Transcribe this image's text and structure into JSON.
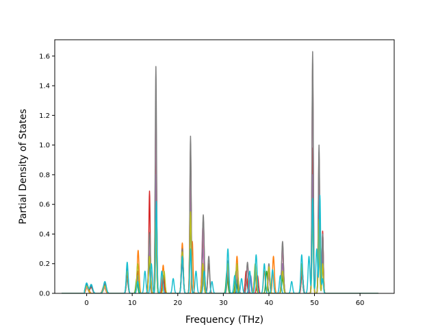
{
  "chart_data": {
    "type": "line",
    "title": "",
    "xlabel": "Frequency (THz)",
    "ylabel": "Partial Density of States",
    "xlim": [
      -7,
      67.5
    ],
    "ylim": [
      0,
      1.71
    ],
    "xticks": [
      0,
      10,
      20,
      30,
      40,
      50,
      60
    ],
    "yticks": [
      0.0,
      0.2,
      0.4,
      0.6,
      0.8,
      1.0,
      1.2,
      1.4,
      1.6
    ],
    "xtick_labels": [
      "0",
      "10",
      "20",
      "30",
      "40",
      "50",
      "60"
    ],
    "ytick_labels": [
      "0.0",
      "0.2",
      "0.4",
      "0.6",
      "0.8",
      "1.0",
      "1.2",
      "1.4",
      "1.6"
    ],
    "grid": false,
    "legend": false,
    "x_range": [
      -5.5,
      64.0
    ],
    "series": [
      {
        "color": "#1f77b4",
        "peaks": [
          [
            0.0,
            0.06,
            0.3
          ],
          [
            1.0,
            0.05,
            0.3
          ],
          [
            4.0,
            0.06,
            0.3
          ],
          [
            8.9,
            0.18,
            0.2
          ],
          [
            11.2,
            0.1,
            0.2
          ],
          [
            13.7,
            0.22,
            0.2
          ],
          [
            15.2,
            0.45,
            0.15
          ],
          [
            21.0,
            0.2,
            0.2
          ],
          [
            22.8,
            0.5,
            0.15
          ],
          [
            25.5,
            0.18,
            0.2
          ],
          [
            31.0,
            0.16,
            0.2
          ],
          [
            33.2,
            0.1,
            0.2
          ],
          [
            37.0,
            0.18,
            0.2
          ],
          [
            40.0,
            0.12,
            0.2
          ],
          [
            43.0,
            0.12,
            0.2
          ],
          [
            47.3,
            0.15,
            0.2
          ],
          [
            49.6,
            0.55,
            0.15
          ],
          [
            51.0,
            0.45,
            0.15
          ],
          [
            51.8,
            0.2,
            0.15
          ]
        ]
      },
      {
        "color": "#ff7f0e",
        "peaks": [
          [
            0.2,
            0.05,
            0.3
          ],
          [
            3.8,
            0.05,
            0.3
          ],
          [
            8.9,
            0.15,
            0.2
          ],
          [
            11.3,
            0.29,
            0.2
          ],
          [
            13.8,
            0.3,
            0.2
          ],
          [
            15.3,
            0.6,
            0.15
          ],
          [
            16.8,
            0.19,
            0.2
          ],
          [
            21.0,
            0.34,
            0.2
          ],
          [
            23.2,
            0.35,
            0.15
          ],
          [
            25.7,
            0.22,
            0.2
          ],
          [
            31.0,
            0.1,
            0.2
          ],
          [
            33.0,
            0.25,
            0.2
          ],
          [
            35.2,
            0.1,
            0.2
          ],
          [
            39.0,
            0.15,
            0.2
          ],
          [
            41.0,
            0.25,
            0.2
          ],
          [
            43.0,
            0.2,
            0.2
          ],
          [
            47.2,
            0.18,
            0.2
          ],
          [
            49.6,
            0.9,
            0.15
          ],
          [
            51.0,
            0.8,
            0.15
          ],
          [
            51.8,
            0.35,
            0.15
          ]
        ]
      },
      {
        "color": "#2ca02c",
        "peaks": [
          [
            0.0,
            0.04,
            0.3
          ],
          [
            4.0,
            0.04,
            0.3
          ],
          [
            8.9,
            0.12,
            0.2
          ],
          [
            11.0,
            0.1,
            0.2
          ],
          [
            13.8,
            0.25,
            0.2
          ],
          [
            15.2,
            0.55,
            0.15
          ],
          [
            17.0,
            0.12,
            0.2
          ],
          [
            21.0,
            0.25,
            0.2
          ],
          [
            22.8,
            0.6,
            0.15
          ],
          [
            25.5,
            0.2,
            0.2
          ],
          [
            30.8,
            0.15,
            0.2
          ],
          [
            32.8,
            0.15,
            0.2
          ],
          [
            37.0,
            0.12,
            0.2
          ],
          [
            39.5,
            0.15,
            0.2
          ],
          [
            43.0,
            0.1,
            0.2
          ],
          [
            47.2,
            0.15,
            0.2
          ],
          [
            49.6,
            0.7,
            0.15
          ],
          [
            51.0,
            0.6,
            0.15
          ],
          [
            51.8,
            0.25,
            0.15
          ]
        ]
      },
      {
        "color": "#d62728",
        "peaks": [
          [
            0.0,
            0.05,
            0.3
          ],
          [
            1.0,
            0.04,
            0.3
          ],
          [
            4.0,
            0.05,
            0.3
          ],
          [
            8.9,
            0.12,
            0.2
          ],
          [
            11.2,
            0.15,
            0.2
          ],
          [
            13.8,
            0.69,
            0.15
          ],
          [
            15.2,
            1.1,
            0.15
          ],
          [
            16.8,
            0.12,
            0.2
          ],
          [
            21.0,
            0.3,
            0.2
          ],
          [
            22.8,
            0.9,
            0.15
          ],
          [
            25.5,
            0.4,
            0.2
          ],
          [
            31.0,
            0.2,
            0.2
          ],
          [
            33.0,
            0.2,
            0.2
          ],
          [
            35.0,
            0.15,
            0.2
          ],
          [
            37.5,
            0.12,
            0.2
          ],
          [
            40.0,
            0.15,
            0.2
          ],
          [
            43.0,
            0.3,
            0.2
          ],
          [
            47.3,
            0.15,
            0.2
          ],
          [
            49.6,
            0.98,
            0.15
          ],
          [
            51.0,
            0.8,
            0.15
          ],
          [
            51.8,
            0.42,
            0.15
          ]
        ]
      },
      {
        "color": "#9467bd",
        "peaks": [
          [
            0.0,
            0.04,
            0.3
          ],
          [
            4.0,
            0.05,
            0.3
          ],
          [
            8.9,
            0.1,
            0.2
          ],
          [
            11.2,
            0.08,
            0.2
          ],
          [
            13.8,
            0.3,
            0.2
          ],
          [
            15.2,
            0.8,
            0.15
          ],
          [
            21.0,
            0.25,
            0.2
          ],
          [
            22.8,
            0.7,
            0.15
          ],
          [
            25.5,
            0.3,
            0.2
          ],
          [
            31.0,
            0.15,
            0.2
          ],
          [
            33.0,
            0.12,
            0.2
          ],
          [
            36.0,
            0.12,
            0.2
          ],
          [
            40.0,
            0.12,
            0.2
          ],
          [
            43.0,
            0.2,
            0.2
          ],
          [
            47.2,
            0.15,
            0.2
          ],
          [
            49.6,
            0.8,
            0.15
          ],
          [
            51.0,
            0.7,
            0.15
          ],
          [
            51.8,
            0.3,
            0.15
          ]
        ]
      },
      {
        "color": "#8c564b",
        "peaks": [
          [
            0.0,
            0.05,
            0.3
          ],
          [
            1.0,
            0.04,
            0.3
          ],
          [
            4.0,
            0.06,
            0.3
          ],
          [
            8.9,
            0.1,
            0.2
          ],
          [
            11.2,
            0.1,
            0.2
          ],
          [
            13.8,
            0.4,
            0.2
          ],
          [
            15.2,
            1.3,
            0.15
          ],
          [
            21.0,
            0.3,
            0.2
          ],
          [
            22.8,
            1.0,
            0.15
          ],
          [
            25.6,
            0.5,
            0.2
          ],
          [
            26.8,
            0.2,
            0.2
          ],
          [
            31.0,
            0.2,
            0.2
          ],
          [
            33.0,
            0.18,
            0.2
          ],
          [
            35.3,
            0.2,
            0.2
          ],
          [
            37.0,
            0.15,
            0.2
          ],
          [
            40.0,
            0.18,
            0.2
          ],
          [
            43.0,
            0.33,
            0.2
          ],
          [
            47.2,
            0.15,
            0.2
          ],
          [
            49.6,
            1.55,
            0.15
          ],
          [
            51.0,
            0.95,
            0.15
          ],
          [
            51.8,
            0.4,
            0.15
          ]
        ]
      },
      {
        "color": "#e377c2",
        "peaks": [
          [
            0.0,
            0.04,
            0.3
          ],
          [
            4.0,
            0.04,
            0.3
          ],
          [
            8.9,
            0.1,
            0.2
          ],
          [
            11.2,
            0.1,
            0.2
          ],
          [
            13.8,
            0.35,
            0.2
          ],
          [
            15.2,
            1.2,
            0.15
          ],
          [
            21.0,
            0.25,
            0.2
          ],
          [
            22.8,
            0.9,
            0.15
          ],
          [
            25.5,
            0.45,
            0.2
          ],
          [
            31.0,
            0.18,
            0.2
          ],
          [
            33.0,
            0.15,
            0.2
          ],
          [
            35.3,
            0.18,
            0.2
          ],
          [
            40.0,
            0.15,
            0.2
          ],
          [
            43.0,
            0.3,
            0.2
          ],
          [
            47.2,
            0.15,
            0.2
          ],
          [
            49.6,
            1.5,
            0.15
          ],
          [
            51.0,
            0.9,
            0.15
          ],
          [
            51.8,
            0.4,
            0.15
          ]
        ]
      },
      {
        "color": "#7f7f7f",
        "peaks": [
          [
            0.0,
            0.05,
            0.3
          ],
          [
            1.0,
            0.06,
            0.3
          ],
          [
            4.0,
            0.07,
            0.3
          ],
          [
            8.9,
            0.1,
            0.2
          ],
          [
            11.2,
            0.12,
            0.2
          ],
          [
            13.8,
            0.41,
            0.2
          ],
          [
            15.2,
            1.53,
            0.15
          ],
          [
            21.0,
            0.3,
            0.2
          ],
          [
            22.8,
            1.06,
            0.15
          ],
          [
            25.6,
            0.53,
            0.2
          ],
          [
            26.8,
            0.25,
            0.2
          ],
          [
            31.0,
            0.22,
            0.2
          ],
          [
            33.0,
            0.2,
            0.2
          ],
          [
            35.3,
            0.21,
            0.2
          ],
          [
            37.0,
            0.15,
            0.2
          ],
          [
            40.0,
            0.2,
            0.2
          ],
          [
            43.0,
            0.35,
            0.2
          ],
          [
            47.2,
            0.15,
            0.2
          ],
          [
            49.6,
            1.63,
            0.15
          ],
          [
            51.0,
            1.0,
            0.15
          ],
          [
            51.8,
            0.4,
            0.15
          ]
        ]
      },
      {
        "color": "#bcbd22",
        "peaks": [
          [
            0.0,
            0.05,
            0.3
          ],
          [
            4.0,
            0.05,
            0.3
          ],
          [
            8.9,
            0.15,
            0.2
          ],
          [
            11.2,
            0.2,
            0.2
          ],
          [
            13.8,
            0.25,
            0.2
          ],
          [
            15.2,
            0.5,
            0.15
          ],
          [
            17.0,
            0.15,
            0.2
          ],
          [
            21.0,
            0.28,
            0.2
          ],
          [
            22.8,
            0.55,
            0.15
          ],
          [
            25.5,
            0.2,
            0.2
          ],
          [
            31.0,
            0.2,
            0.2
          ],
          [
            33.0,
            0.2,
            0.2
          ],
          [
            37.0,
            0.2,
            0.2
          ],
          [
            40.0,
            0.18,
            0.2
          ],
          [
            43.0,
            0.15,
            0.2
          ],
          [
            47.2,
            0.2,
            0.2
          ],
          [
            49.6,
            0.5,
            0.15
          ],
          [
            51.0,
            0.5,
            0.15
          ],
          [
            51.8,
            0.2,
            0.15
          ]
        ]
      },
      {
        "color": "#17becf",
        "peaks": [
          [
            0.0,
            0.07,
            0.3
          ],
          [
            1.0,
            0.06,
            0.3
          ],
          [
            4.0,
            0.08,
            0.3
          ],
          [
            8.9,
            0.21,
            0.2
          ],
          [
            11.2,
            0.08,
            0.2
          ],
          [
            12.8,
            0.15,
            0.2
          ],
          [
            14.2,
            0.2,
            0.2
          ],
          [
            15.3,
            0.62,
            0.15
          ],
          [
            16.5,
            0.15,
            0.2
          ],
          [
            19.0,
            0.1,
            0.2
          ],
          [
            21.0,
            0.25,
            0.2
          ],
          [
            22.8,
            0.3,
            0.15
          ],
          [
            24.0,
            0.15,
            0.2
          ],
          [
            25.8,
            0.15,
            0.2
          ],
          [
            27.5,
            0.08,
            0.2
          ],
          [
            31.0,
            0.3,
            0.2
          ],
          [
            32.5,
            0.12,
            0.2
          ],
          [
            34.0,
            0.1,
            0.2
          ],
          [
            35.8,
            0.15,
            0.2
          ],
          [
            37.2,
            0.26,
            0.2
          ],
          [
            39.0,
            0.2,
            0.2
          ],
          [
            40.8,
            0.16,
            0.2
          ],
          [
            42.5,
            0.12,
            0.2
          ],
          [
            45.0,
            0.08,
            0.2
          ],
          [
            47.2,
            0.26,
            0.2
          ],
          [
            48.8,
            0.25,
            0.2
          ],
          [
            49.6,
            0.64,
            0.15
          ],
          [
            50.5,
            0.3,
            0.2
          ],
          [
            51.2,
            0.66,
            0.15
          ],
          [
            51.8,
            0.1,
            0.15
          ]
        ]
      }
    ]
  }
}
